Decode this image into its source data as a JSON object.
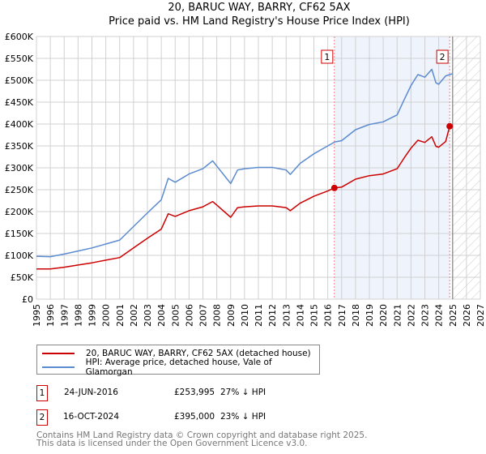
{
  "chart_data": {
    "type": "line",
    "title": "20, BARUC WAY, BARRY, CF62 5AX",
    "subtitle": "Price paid vs. HM Land Registry's House Price Index (HPI)",
    "xlim": [
      1995,
      2027
    ],
    "ylim": [
      0,
      600000
    ],
    "x_ticks": [
      "1995",
      "1996",
      "1997",
      "1998",
      "1999",
      "2000",
      "2001",
      "2002",
      "2003",
      "2004",
      "2005",
      "2006",
      "2007",
      "2008",
      "2009",
      "2010",
      "2011",
      "2012",
      "2013",
      "2014",
      "2015",
      "2016",
      "2017",
      "2018",
      "2019",
      "2020",
      "2021",
      "2022",
      "2023",
      "2024",
      "2025",
      "2026",
      "2027"
    ],
    "y_ticks": [
      {
        "v": 0,
        "label": "£0"
      },
      {
        "v": 50000,
        "label": "£50K"
      },
      {
        "v": 100000,
        "label": "£100K"
      },
      {
        "v": 150000,
        "label": "£150K"
      },
      {
        "v": 200000,
        "label": "£200K"
      },
      {
        "v": 250000,
        "label": "£250K"
      },
      {
        "v": 300000,
        "label": "£300K"
      },
      {
        "v": 350000,
        "label": "£350K"
      },
      {
        "v": 400000,
        "label": "£400K"
      },
      {
        "v": 450000,
        "label": "£450K"
      },
      {
        "v": 500000,
        "label": "£500K"
      },
      {
        "v": 550000,
        "label": "£550K"
      },
      {
        "v": 600000,
        "label": "£600K"
      }
    ],
    "grid": true,
    "series": [
      {
        "name": "20, BARUC WAY, BARRY, CF62 5AX (detached house)",
        "color": "#cc0000",
        "x": [
          1995,
          1996,
          1997,
          1998,
          1999,
          2000,
          2001,
          2002,
          2003,
          2004,
          2004.5,
          2005,
          2006,
          2007,
          2007.7,
          2008,
          2009,
          2009.5,
          2010,
          2011,
          2012,
          2013,
          2013.3,
          2014,
          2015,
          2016,
          2016.48,
          2017,
          2018,
          2019,
          2020,
          2021,
          2021.5,
          2022,
          2022.5,
          2023,
          2023.5,
          2023.8,
          2024,
          2024.5,
          2024.79,
          2025
        ],
        "y": [
          69000,
          69000,
          73000,
          78000,
          83000,
          89000,
          95000,
          117000,
          139000,
          160000,
          195000,
          189000,
          202000,
          211000,
          223000,
          215000,
          187000,
          209000,
          211000,
          213000,
          213000,
          209000,
          202000,
          219000,
          235000,
          247000,
          253995,
          256000,
          274000,
          282000,
          286000,
          298000,
          322000,
          345000,
          363000,
          358000,
          371000,
          349000,
          347000,
          360000,
          395000,
          397000
        ]
      },
      {
        "name": "HPI: Average price, detached house, Vale of Glamorgan",
        "color": "#5b8bd0",
        "x": [
          1995,
          1996,
          1997,
          1998,
          1999,
          2000,
          2001,
          2002,
          2003,
          2004,
          2004.5,
          2005,
          2006,
          2007,
          2007.7,
          2008,
          2009,
          2009.5,
          2010,
          2011,
          2012,
          2013,
          2013.3,
          2014,
          2015,
          2016,
          2016.5,
          2017,
          2018,
          2019,
          2020,
          2021,
          2021.5,
          2022,
          2022.5,
          2023,
          2023.5,
          2023.8,
          2024,
          2024.5,
          2025
        ],
        "y": [
          98000,
          97000,
          103000,
          110000,
          117000,
          126000,
          135000,
          166000,
          197000,
          227000,
          276000,
          267000,
          286000,
          298000,
          316000,
          304000,
          264000,
          295000,
          298000,
          301000,
          301000,
          295000,
          285000,
          310000,
          332000,
          350000,
          359000,
          362000,
          387000,
          399000,
          405000,
          421000,
          455000,
          488000,
          513000,
          507000,
          525000,
          494000,
          491000,
          510000,
          515000
        ]
      }
    ],
    "sales": [
      {
        "label": "1",
        "x": 2016.48,
        "y": 253995,
        "date": "24-JUN-2016",
        "price": "£253,995",
        "hpi": "27% ↓ HPI"
      },
      {
        "label": "2",
        "x": 2024.79,
        "y": 395000,
        "date": "16-OCT-2024",
        "price": "£395,000",
        "hpi": "23% ↓ HPI"
      }
    ],
    "forecast_start": 2025,
    "legend_placement": "below"
  },
  "footer": {
    "line1": "Contains HM Land Registry data © Crown copyright and database right 2025.",
    "line2": "This data is licensed under the Open Government Licence v3.0."
  }
}
